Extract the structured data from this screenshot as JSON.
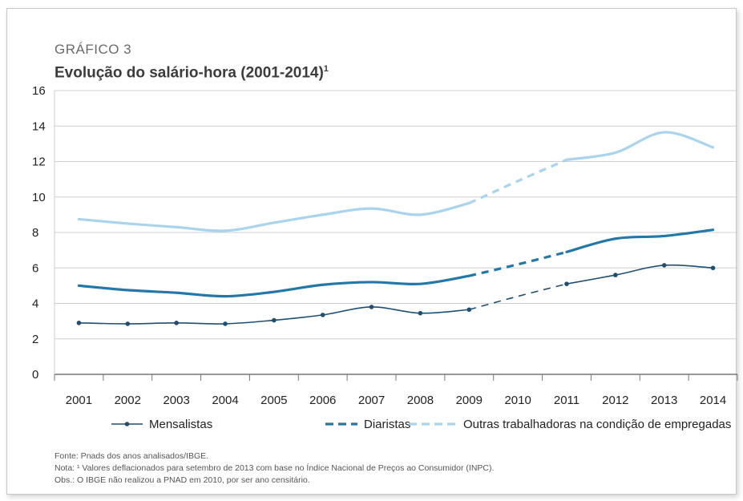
{
  "header": {
    "label": "GRÁFICO 3",
    "title": "Evolução do salário-hora (2001-2014)",
    "title_sup": "1"
  },
  "chart_data": {
    "type": "line",
    "x": [
      "2001",
      "2002",
      "2003",
      "2004",
      "2005",
      "2006",
      "2007",
      "2008",
      "2009",
      "2010",
      "2011",
      "2012",
      "2013",
      "2014"
    ],
    "ylim": [
      0,
      16
    ],
    "yticks": [
      "0",
      "2",
      "4",
      "6",
      "8",
      "10",
      "12",
      "14",
      "16"
    ],
    "grid": true,
    "legend_position": "bottom",
    "series": [
      {
        "name": "Mensalistas",
        "color": "#1f4e6e",
        "style": "solid-markers",
        "values": [
          2.9,
          2.85,
          2.9,
          2.85,
          3.05,
          3.35,
          3.8,
          3.45,
          3.65,
          4.4,
          5.1,
          5.6,
          6.15,
          6.0
        ]
      },
      {
        "name": "Diaristas",
        "color": "#2478a8",
        "style": "thick",
        "values": [
          5.0,
          4.75,
          4.6,
          4.4,
          4.65,
          5.05,
          5.2,
          5.1,
          5.55,
          6.2,
          6.9,
          7.65,
          7.8,
          8.15
        ]
      },
      {
        "name": "Outras trabalhadoras na condição de empregadas",
        "color": "#a9d4ec",
        "style": "thick",
        "values": [
          8.75,
          8.5,
          8.3,
          8.1,
          8.55,
          9.0,
          9.35,
          9.0,
          9.65,
          10.9,
          12.1,
          12.5,
          13.65,
          12.8
        ]
      }
    ],
    "interpolated_between": [
      "2009",
      "2011"
    ]
  },
  "notes": {
    "source": "Fonte: Pnads dos anos analisados/IBGE.",
    "note": "Nota: ¹ Valores deflacionados para setembro de 2013 com base no Índice Nacional de Preços ao Consumidor (INPC).",
    "obs": "Obs.: O IBGE não realizou a PNAD em 2010, por ser ano censitário."
  }
}
